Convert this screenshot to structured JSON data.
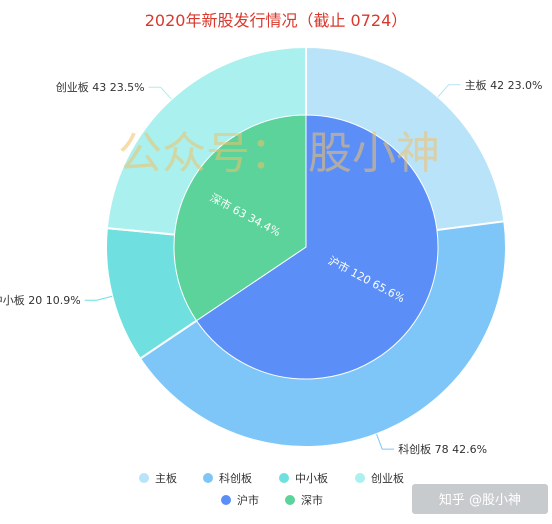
{
  "chart_data": {
    "type": "pie",
    "title": "2020年新股发行情况（截止 0724）",
    "legend_position": "bottom",
    "outer_ring": [
      {
        "name": "主板",
        "value": 42,
        "percent": "23.0%",
        "color": "#b9e3f9"
      },
      {
        "name": "科创板",
        "value": 78,
        "percent": "42.6%",
        "color": "#7ec6f7"
      },
      {
        "name": "中小板",
        "value": 20,
        "percent": "10.9%",
        "color": "#6fe0df"
      },
      {
        "name": "创业板",
        "value": 43,
        "percent": "23.5%",
        "color": "#a9f0ee"
      }
    ],
    "inner_ring": [
      {
        "name": "沪市",
        "value": 120,
        "percent": "65.6%",
        "color": "#5b8ff7"
      },
      {
        "name": "深市",
        "value": 63,
        "percent": "34.4%",
        "color": "#5bd39a"
      }
    ]
  },
  "watermark": "公众号：  股小神",
  "credit": "知乎 @股小神"
}
